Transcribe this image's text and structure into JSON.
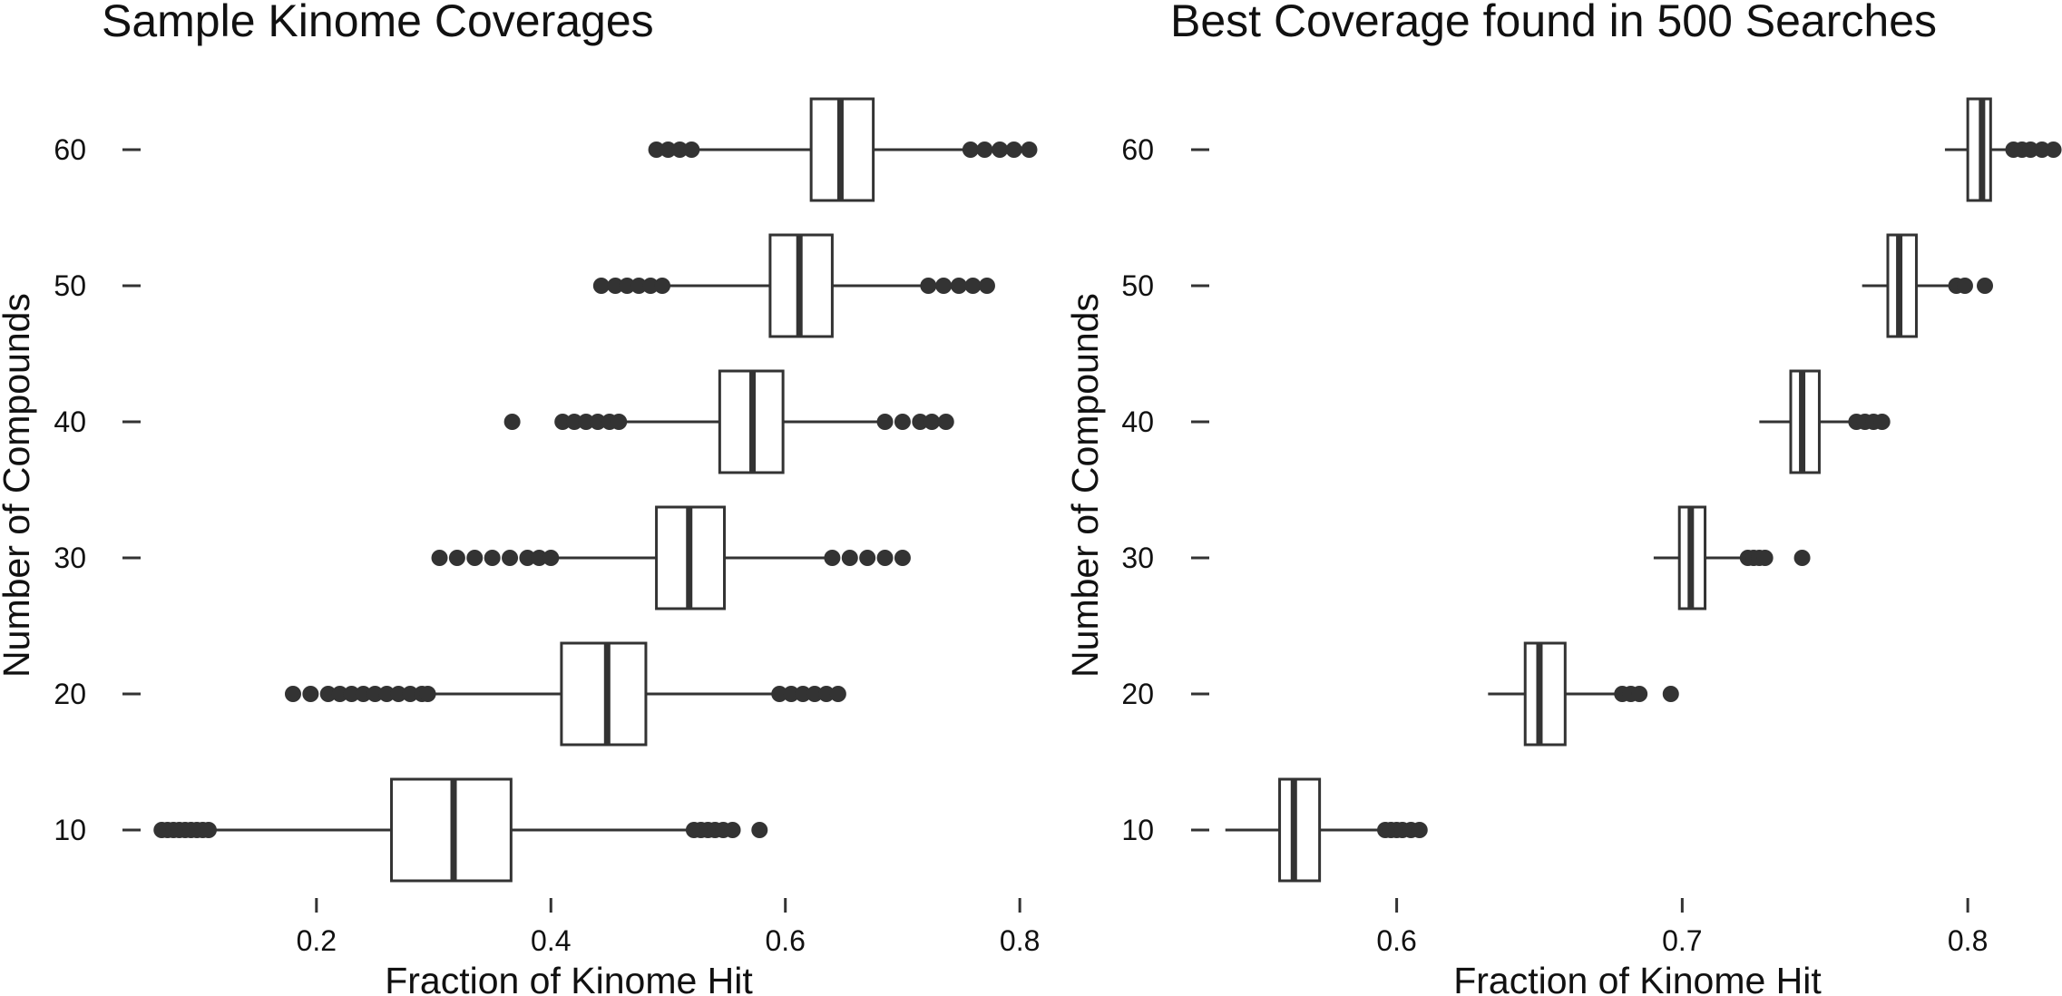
{
  "chart_data": [
    {
      "type": "box",
      "title": "Sample Kinome Coverages",
      "xlabel": "Fraction of Kinome Hit",
      "ylabel": "Number of Compounds",
      "xlim": [
        0.05,
        0.82
      ],
      "ylim": [
        5,
        65
      ],
      "xticks": [
        0.2,
        0.4,
        0.6,
        0.8
      ],
      "xtick_labels": [
        "0.2",
        "0.4",
        "0.6",
        "0.8"
      ],
      "yticks": [
        10,
        20,
        30,
        40,
        50,
        60
      ],
      "ytick_labels": [
        "10",
        "20",
        "30",
        "40",
        "50",
        "60"
      ],
      "grid": false,
      "legend": "none",
      "categories": [
        10,
        20,
        30,
        40,
        50,
        60
      ],
      "boxes": [
        {
          "n": 10,
          "whisker_low": 0.11,
          "q1": 0.264,
          "median": 0.317,
          "q3": 0.366,
          "whisker_high": 0.518,
          "outliers": [
            0.068,
            0.073,
            0.078,
            0.083,
            0.088,
            0.093,
            0.098,
            0.103,
            0.108,
            0.522,
            0.528,
            0.534,
            0.54,
            0.547,
            0.555,
            0.578
          ]
        },
        {
          "n": 20,
          "whisker_low": 0.3,
          "q1": 0.409,
          "median": 0.448,
          "q3": 0.481,
          "whisker_high": 0.59,
          "outliers": [
            0.18,
            0.195,
            0.21,
            0.22,
            0.23,
            0.24,
            0.25,
            0.26,
            0.27,
            0.28,
            0.29,
            0.295,
            0.595,
            0.605,
            0.615,
            0.625,
            0.635,
            0.645
          ]
        },
        {
          "n": 30,
          "whisker_low": 0.405,
          "q1": 0.49,
          "median": 0.518,
          "q3": 0.548,
          "whisker_high": 0.636,
          "outliers": [
            0.305,
            0.32,
            0.335,
            0.35,
            0.365,
            0.38,
            0.39,
            0.4,
            0.64,
            0.655,
            0.67,
            0.685,
            0.7
          ]
        },
        {
          "n": 40,
          "whisker_low": 0.46,
          "q1": 0.544,
          "median": 0.572,
          "q3": 0.598,
          "whisker_high": 0.682,
          "outliers": [
            0.367,
            0.41,
            0.42,
            0.43,
            0.44,
            0.45,
            0.458,
            0.685,
            0.7,
            0.715,
            0.725,
            0.737
          ]
        },
        {
          "n": 50,
          "whisker_low": 0.5,
          "q1": 0.587,
          "median": 0.612,
          "q3": 0.64,
          "whisker_high": 0.72,
          "outliers": [
            0.443,
            0.455,
            0.465,
            0.475,
            0.485,
            0.495,
            0.722,
            0.735,
            0.748,
            0.76,
            0.772
          ]
        },
        {
          "n": 60,
          "whisker_low": 0.52,
          "q1": 0.622,
          "median": 0.647,
          "q3": 0.675,
          "whisker_high": 0.755,
          "outliers": [
            0.49,
            0.5,
            0.51,
            0.52,
            0.758,
            0.77,
            0.783,
            0.795,
            0.808
          ]
        }
      ]
    },
    {
      "type": "box",
      "title": "Best Coverage found in 500 Searches",
      "xlabel": "Fraction of Kinome Hit",
      "ylabel": "Number of Compounds",
      "xlim": [
        0.535,
        0.833
      ],
      "ylim": [
        5,
        65
      ],
      "xticks": [
        0.6,
        0.7,
        0.8
      ],
      "xtick_labels": [
        "0.6",
        "0.7",
        "0.8"
      ],
      "yticks": [
        10,
        20,
        30,
        40,
        50,
        60
      ],
      "ytick_labels": [
        "10",
        "20",
        "30",
        "40",
        "50",
        "60"
      ],
      "grid": false,
      "legend": "none",
      "categories": [
        10,
        20,
        30,
        40,
        50,
        60
      ],
      "boxes": [
        {
          "n": 10,
          "whisker_low": 0.54,
          "q1": 0.559,
          "median": 0.564,
          "q3": 0.573,
          "whisker_high": 0.595,
          "outliers": [
            0.596,
            0.598,
            0.6,
            0.602,
            0.605,
            0.608
          ]
        },
        {
          "n": 20,
          "whisker_low": 0.632,
          "q1": 0.645,
          "median": 0.65,
          "q3": 0.659,
          "whisker_high": 0.678,
          "outliers": [
            0.679,
            0.682,
            0.685,
            0.696
          ]
        },
        {
          "n": 30,
          "whisker_low": 0.69,
          "q1": 0.699,
          "median": 0.703,
          "q3": 0.708,
          "whisker_high": 0.722,
          "outliers": [
            0.723,
            0.725,
            0.727,
            0.729,
            0.742
          ]
        },
        {
          "n": 40,
          "whisker_low": 0.727,
          "q1": 0.738,
          "median": 0.742,
          "q3": 0.748,
          "whisker_high": 0.76,
          "outliers": [
            0.761,
            0.764,
            0.767,
            0.77
          ]
        },
        {
          "n": 50,
          "whisker_low": 0.763,
          "q1": 0.772,
          "median": 0.776,
          "q3": 0.782,
          "whisker_high": 0.795,
          "outliers": [
            0.796,
            0.799,
            0.806
          ]
        },
        {
          "n": 60,
          "whisker_low": 0.792,
          "q1": 0.8,
          "median": 0.805,
          "q3": 0.808,
          "whisker_high": 0.815,
          "outliers": [
            0.816,
            0.819,
            0.822,
            0.826,
            0.83
          ]
        }
      ]
    }
  ],
  "colors": {
    "box_stroke": "#333333",
    "box_fill": "#ffffff",
    "outlier": "#333333",
    "text": "#111111"
  }
}
